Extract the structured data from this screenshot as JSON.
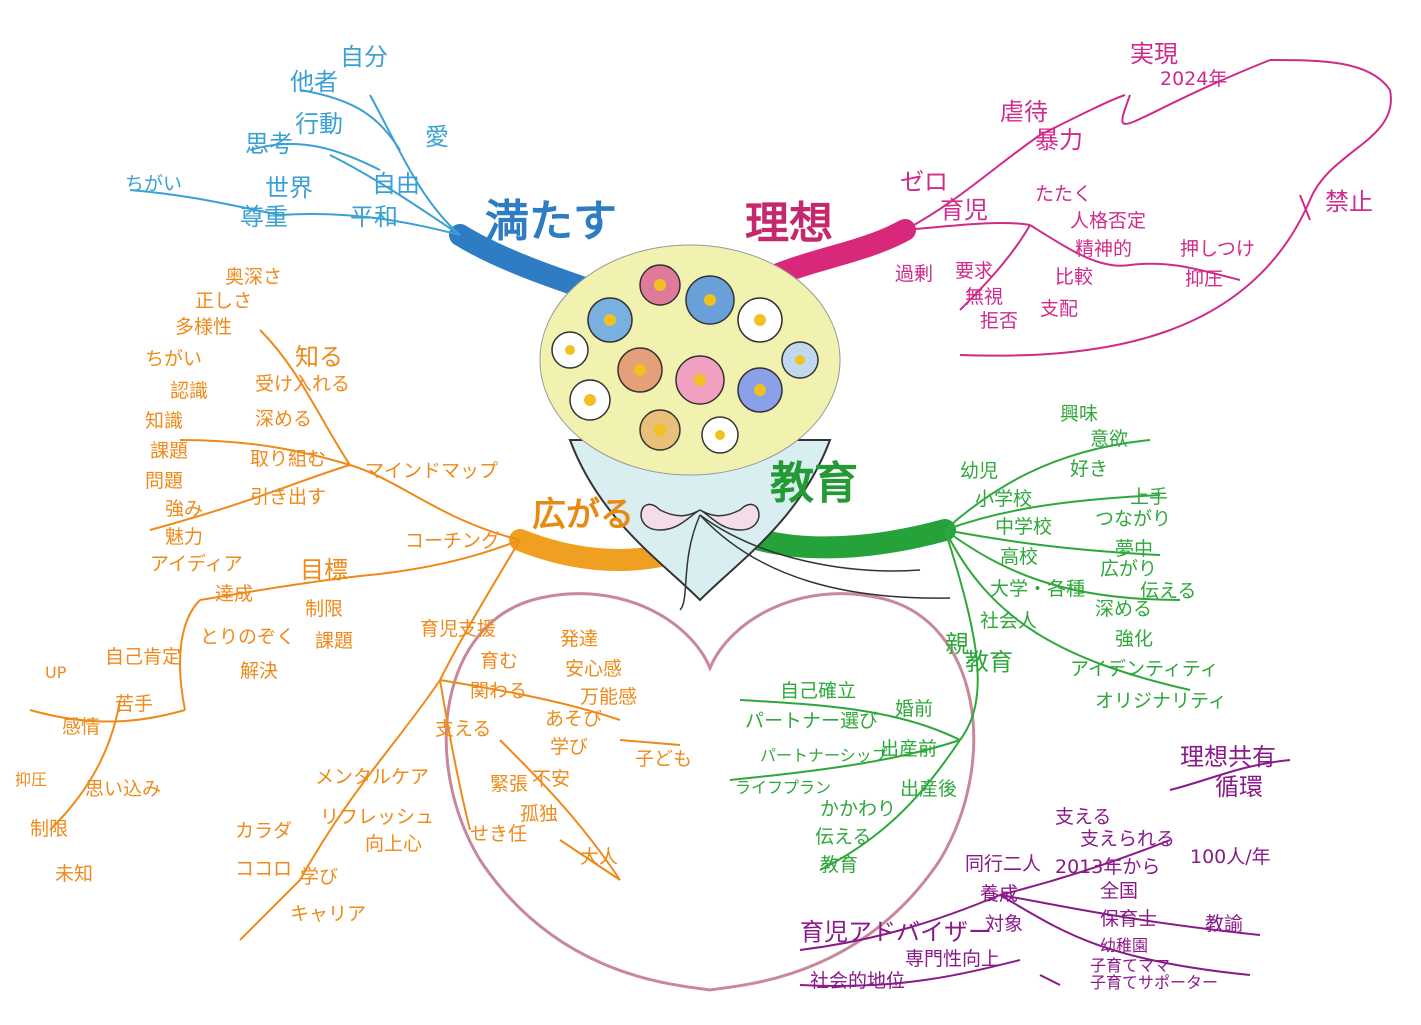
{
  "colors": {
    "blue": "#3ba0d2",
    "pink": "#d02a8a",
    "orange": "#ee8a1a",
    "green": "#2ea83a",
    "purple": "#8a1a8a",
    "heart": "#c9889a"
  },
  "center_icon": "flower-bouquet-icon",
  "branches": {
    "mitasu": {
      "title": "満たす",
      "items": {
        "jibun": "自分",
        "tasha": "他者",
        "ai": "愛",
        "koudou": "行動",
        "shikou": "思考",
        "jiyuu": "自由",
        "chigai": "ちがい",
        "sekai": "世界",
        "sonchou": "尊重",
        "heiwa": "平和"
      }
    },
    "risou": {
      "title": "理想",
      "items": {
        "jitsugen": "実現",
        "nen": "2024年",
        "gyakutai": "虐待",
        "bouryoku": "暴力",
        "zero": "ゼロ",
        "kinshi": "禁止",
        "ikuji": "育児",
        "tataku": "たたく",
        "jinkaku": "人格否定",
        "seishin": "精神的",
        "oshitsuke": "押しつけ",
        "yokuatsu": "抑圧",
        "kajou": "過剰",
        "youkyuu": "要求",
        "mushi": "無視",
        "hikaku": "比較",
        "kyohi": "拒否",
        "shihai": "支配"
      }
    },
    "hirogaru": {
      "title": "広がる",
      "items": {
        "okubukasa": "奥深さ",
        "tadashisa": "正しさ",
        "tayousei": "多様性",
        "shiru": "知る",
        "chigai": "ちがい",
        "ukeireru": "受け入れる",
        "ninshiki": "認識",
        "fukameru": "深める",
        "chishiki": "知識",
        "kadai": "課題",
        "torikumu": "取り組む",
        "mondai": "問題",
        "tsuyomi": "強み",
        "hikidasu": "引き出す",
        "miryoku": "魅力",
        "idea": "アイディア",
        "mindmap": "マインドマップ",
        "coaching": "コーチング",
        "tassei": "達成",
        "mokuhyou": "目標",
        "torinozoku": "とりのぞく",
        "seigen": "制限",
        "kaiketsu": "解決",
        "kadai2": "課題",
        "up": "UP",
        "jikokankan": "自己肯定",
        "nigate": "苦手",
        "yokuatsu": "抑圧",
        "kanjou": "感情",
        "seigen2": "制限",
        "omoikomi": "思い込み",
        "michi": "未知",
        "ikuji_shien": "育児支援",
        "hagukumu": "育む",
        "hattatsu": "発達",
        "anshinkan": "安心感",
        "kakawaru": "関わる",
        "bannoukan": "万能感",
        "sasaeru": "支える",
        "asobi": "あそび",
        "manabi": "学び",
        "kodomo": "子ども",
        "fuan": "不安",
        "kinchou": "緊張",
        "kodoku": "孤独",
        "sekinin": "せき任",
        "otona": "大人",
        "mental": "メンタルケア",
        "karada": "カラダ",
        "refresh": "リフレッシュ",
        "kokoro": "ココロ",
        "manabi2": "学び",
        "koujoushin": "向上心",
        "career": "キャリア"
      }
    },
    "kyouiku": {
      "title": "教育",
      "items": {
        "youji": "幼児",
        "kyoumi": "興味",
        "iyoku": "意欲",
        "shougakkou": "小学校",
        "suki": "好き",
        "jouzu": "上手",
        "chuugakkou": "中学校",
        "tsunagari": "つながり",
        "muchuu": "夢中",
        "koukou": "高校",
        "hirogari": "広がり",
        "daigaku": "大学・各種",
        "tsutaeru": "伝える",
        "shakai": "社会人",
        "fukameru": "深める",
        "kyouka": "強化",
        "identity": "アイデンティティ",
        "originality": "オリジナリティ",
        "oya": "親",
        "kyouiku": "教育",
        "jiko": "自己確立",
        "partner_sentaku": "パートナー選び",
        "konzen": "婚前",
        "partnership": "パートナーシップ",
        "sanzen": "出産前",
        "lifeplan": "ライフプラン",
        "kakawari": "かかわり",
        "sango": "出産後",
        "tsutaeru2": "伝える",
        "kyouiku2": "教育"
      }
    },
    "ikuji_adviser": {
      "title": "育児アドバイザー",
      "items": {
        "risou_kyouyuu": "理想共有",
        "junkan": "循環",
        "sasaeru": "支える",
        "sasaerareru": "支えられる",
        "doukou": "同行二人",
        "seido": "2013年から",
        "youchi": "100人/年",
        "yousei": "養成",
        "zenkoku": "全国",
        "taishou": "対象",
        "hoikushi": "保育士",
        "kyouyu": "教諭",
        "youchien": "幼稚園",
        "sodatemama": "子育てママ",
        "supporter": "子育てサポーター",
        "senmonsei": "専門性向上",
        "shakaiteki": "社会的地位"
      }
    }
  }
}
